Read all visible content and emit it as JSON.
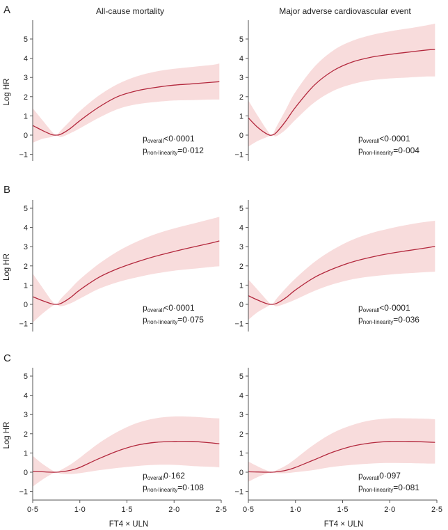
{
  "figure": {
    "column_titles": [
      "All-cause mortality",
      "Major adverse cardiovascular event"
    ],
    "x_axis_label": "FT4 × ULN",
    "y_axis_label": "Log HR",
    "x_ticks": [
      "0·5",
      "1·0",
      "1·5",
      "2·0",
      "2·5"
    ],
    "y_ticks": [
      "−1",
      "0",
      "1",
      "2",
      "3",
      "4",
      "5"
    ],
    "colors": {
      "curve": "#b3283d",
      "band": "#f8dcdc",
      "axis": "#555555"
    }
  },
  "chart_data": [
    {
      "type": "line",
      "row": "A",
      "column": "All-cause mortality",
      "xlim": [
        0.5,
        2.5
      ],
      "ylim": [
        -1.2,
        5.6
      ],
      "x": [
        0.5,
        0.6,
        0.7,
        0.75,
        0.8,
        0.9,
        1.0,
        1.2,
        1.4,
        1.6,
        1.8,
        2.0,
        2.2,
        2.4,
        2.48
      ],
      "series": [
        {
          "name": "estimate",
          "values": [
            0.5,
            0.25,
            0.03,
            0.0,
            0.05,
            0.35,
            0.75,
            1.45,
            2.0,
            2.3,
            2.48,
            2.6,
            2.67,
            2.75,
            2.78
          ]
        },
        {
          "name": "upper",
          "values": [
            1.4,
            0.8,
            0.2,
            0.0,
            0.25,
            0.75,
            1.25,
            2.05,
            2.65,
            3.05,
            3.3,
            3.45,
            3.55,
            3.65,
            3.72
          ]
        },
        {
          "name": "lower",
          "values": [
            -0.4,
            -0.2,
            -0.1,
            0.0,
            -0.1,
            0.1,
            0.35,
            0.9,
            1.35,
            1.6,
            1.72,
            1.8,
            1.82,
            1.85,
            1.85
          ]
        }
      ],
      "annotation": {
        "p_overall": "<0·0001",
        "p_nonlinearity": "=0·012"
      }
    },
    {
      "type": "line",
      "row": "A",
      "column": "Major adverse cardiovascular event",
      "xlim": [
        0.5,
        2.5
      ],
      "ylim": [
        -1.2,
        5.6
      ],
      "x": [
        0.5,
        0.6,
        0.7,
        0.75,
        0.8,
        0.9,
        1.0,
        1.2,
        1.4,
        1.6,
        1.8,
        2.0,
        2.2,
        2.4,
        2.48
      ],
      "series": [
        {
          "name": "estimate",
          "values": [
            0.9,
            0.4,
            0.05,
            0.0,
            0.15,
            0.75,
            1.45,
            2.6,
            3.35,
            3.8,
            4.05,
            4.2,
            4.32,
            4.43,
            4.46
          ]
        },
        {
          "name": "upper",
          "values": [
            1.8,
            1.0,
            0.25,
            0.0,
            0.45,
            1.35,
            2.25,
            3.55,
            4.4,
            4.9,
            5.2,
            5.4,
            5.55,
            5.72,
            5.8
          ]
        },
        {
          "name": "lower",
          "values": [
            -0.6,
            -0.3,
            -0.1,
            0.0,
            -0.05,
            0.3,
            0.8,
            1.7,
            2.3,
            2.65,
            2.85,
            2.95,
            3.0,
            3.05,
            3.05
          ]
        }
      ],
      "annotation": {
        "p_overall": "<0·0001",
        "p_nonlinearity": "=0·004"
      }
    },
    {
      "type": "line",
      "row": "B",
      "column": "All-cause mortality",
      "xlim": [
        0.5,
        2.5
      ],
      "ylim": [
        -1.2,
        5.6
      ],
      "x": [
        0.5,
        0.6,
        0.7,
        0.75,
        0.8,
        0.9,
        1.0,
        1.2,
        1.4,
        1.6,
        1.8,
        2.0,
        2.2,
        2.4,
        2.48
      ],
      "series": [
        {
          "name": "estimate",
          "values": [
            0.4,
            0.2,
            0.03,
            0.0,
            0.05,
            0.35,
            0.75,
            1.4,
            1.85,
            2.2,
            2.5,
            2.75,
            2.98,
            3.2,
            3.3
          ]
        },
        {
          "name": "upper",
          "values": [
            1.6,
            0.9,
            0.2,
            0.0,
            0.3,
            0.8,
            1.3,
            2.1,
            2.75,
            3.25,
            3.65,
            3.95,
            4.2,
            4.45,
            4.55
          ]
        },
        {
          "name": "lower",
          "values": [
            -0.95,
            -0.5,
            -0.12,
            0.0,
            -0.1,
            0.05,
            0.3,
            0.8,
            1.15,
            1.4,
            1.6,
            1.75,
            1.85,
            1.95,
            1.98
          ]
        }
      ],
      "annotation": {
        "p_overall": "<0·0001",
        "p_nonlinearity": "=0·075"
      }
    },
    {
      "type": "line",
      "row": "B",
      "column": "Major adverse cardiovascular event",
      "xlim": [
        0.5,
        2.5
      ],
      "ylim": [
        -1.2,
        5.6
      ],
      "x": [
        0.5,
        0.6,
        0.7,
        0.75,
        0.8,
        0.9,
        1.0,
        1.2,
        1.4,
        1.6,
        1.8,
        2.0,
        2.2,
        2.4,
        2.48
      ],
      "series": [
        {
          "name": "estimate",
          "values": [
            0.45,
            0.22,
            0.03,
            0.0,
            0.05,
            0.35,
            0.75,
            1.4,
            1.85,
            2.2,
            2.45,
            2.65,
            2.8,
            2.95,
            3.02
          ]
        },
        {
          "name": "upper",
          "values": [
            1.3,
            0.75,
            0.2,
            0.0,
            0.3,
            0.85,
            1.35,
            2.2,
            2.85,
            3.35,
            3.7,
            3.95,
            4.15,
            4.3,
            4.35
          ]
        },
        {
          "name": "lower",
          "values": [
            -0.8,
            -0.4,
            -0.12,
            0.0,
            -0.1,
            0.05,
            0.25,
            0.7,
            1.05,
            1.3,
            1.45,
            1.55,
            1.62,
            1.68,
            1.7
          ]
        }
      ],
      "annotation": {
        "p_overall": "<0·0001",
        "p_nonlinearity": "=0·036"
      }
    },
    {
      "type": "line",
      "row": "C",
      "column": "All-cause mortality",
      "xlim": [
        0.5,
        2.5
      ],
      "ylim": [
        -1.2,
        5.6
      ],
      "x": [
        0.5,
        0.6,
        0.7,
        0.75,
        0.8,
        0.9,
        1.0,
        1.2,
        1.4,
        1.6,
        1.8,
        2.0,
        2.2,
        2.4,
        2.48
      ],
      "series": [
        {
          "name": "estimate",
          "values": [
            0.05,
            0.02,
            0.0,
            0.0,
            0.02,
            0.1,
            0.25,
            0.7,
            1.1,
            1.4,
            1.55,
            1.6,
            1.6,
            1.52,
            1.48
          ]
        },
        {
          "name": "upper",
          "values": [
            0.85,
            0.45,
            0.12,
            0.0,
            0.12,
            0.4,
            0.75,
            1.5,
            2.1,
            2.55,
            2.8,
            2.9,
            2.88,
            2.82,
            2.8
          ]
        },
        {
          "name": "lower",
          "values": [
            -0.75,
            -0.4,
            -0.1,
            0.0,
            -0.08,
            -0.1,
            -0.05,
            0.1,
            0.22,
            0.32,
            0.38,
            0.38,
            0.32,
            0.28,
            0.25
          ]
        }
      ],
      "annotation": {
        "p_overall": "0·162",
        "p_nonlinearity": "=0·108"
      }
    },
    {
      "type": "line",
      "row": "C",
      "column": "Major adverse cardiovascular event",
      "xlim": [
        0.5,
        2.5
      ],
      "ylim": [
        -1.2,
        5.6
      ],
      "x": [
        0.5,
        0.6,
        0.7,
        0.75,
        0.8,
        0.9,
        1.0,
        1.2,
        1.4,
        1.6,
        1.8,
        2.0,
        2.2,
        2.4,
        2.48
      ],
      "series": [
        {
          "name": "estimate",
          "values": [
            0.02,
            0.01,
            0.0,
            0.0,
            0.02,
            0.1,
            0.25,
            0.65,
            1.05,
            1.35,
            1.52,
            1.6,
            1.6,
            1.57,
            1.55
          ]
        },
        {
          "name": "upper",
          "values": [
            0.55,
            0.3,
            0.08,
            0.0,
            0.1,
            0.35,
            0.7,
            1.45,
            2.05,
            2.45,
            2.7,
            2.8,
            2.8,
            2.78,
            2.75
          ]
        },
        {
          "name": "lower",
          "values": [
            -0.5,
            -0.25,
            -0.06,
            0.0,
            -0.05,
            -0.05,
            0.0,
            0.12,
            0.28,
            0.38,
            0.45,
            0.48,
            0.47,
            0.45,
            0.45
          ]
        }
      ],
      "annotation": {
        "p_overall": "0·097",
        "p_nonlinearity": "=0·081"
      }
    }
  ]
}
